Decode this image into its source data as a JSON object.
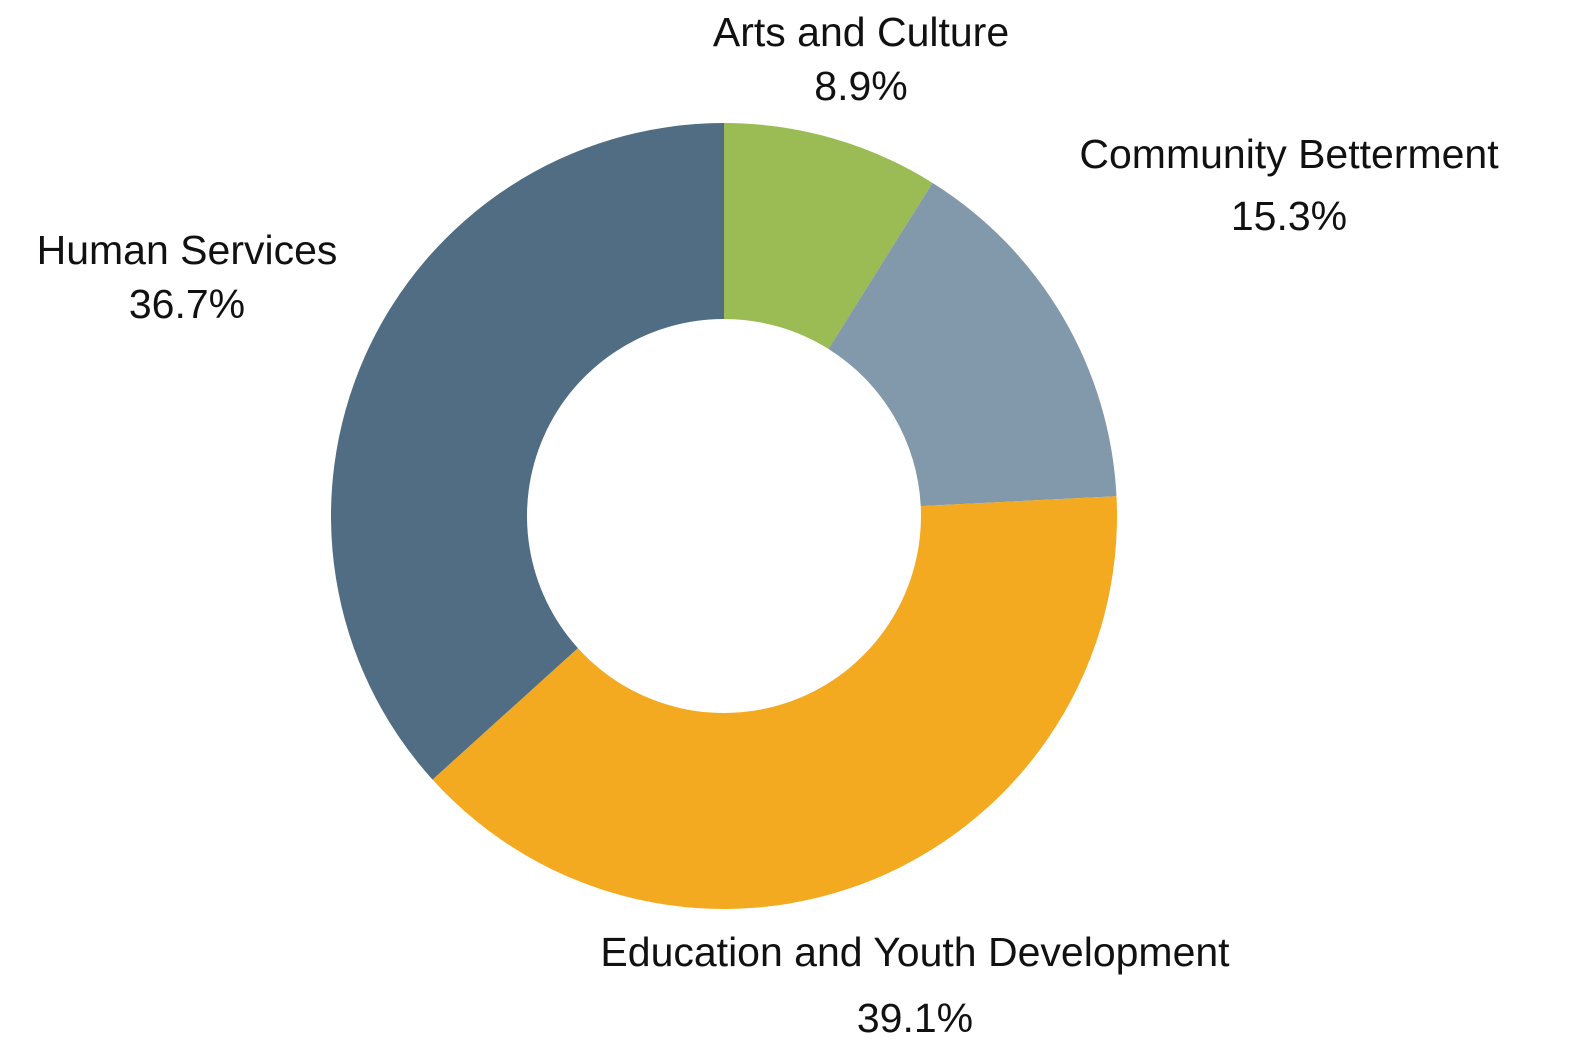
{
  "chart_data": {
    "type": "pie",
    "variant": "donut",
    "title": "",
    "legend": "none",
    "start": "top, clockwise",
    "slices": [
      {
        "label": "Arts and Culture",
        "value": 8.9,
        "value_label": "8.9%",
        "color": "#9bbb55"
      },
      {
        "label": "Community Betterment",
        "value": 15.3,
        "value_label": "15.3%",
        "color": "#8298ab"
      },
      {
        "label": "Education and Youth Development",
        "value": 39.1,
        "value_label": "39.1%",
        "color": "#f4aa20"
      },
      {
        "label": "Human Services",
        "value": 36.7,
        "value_label": "36.7%",
        "color": "#506d84"
      }
    ]
  }
}
